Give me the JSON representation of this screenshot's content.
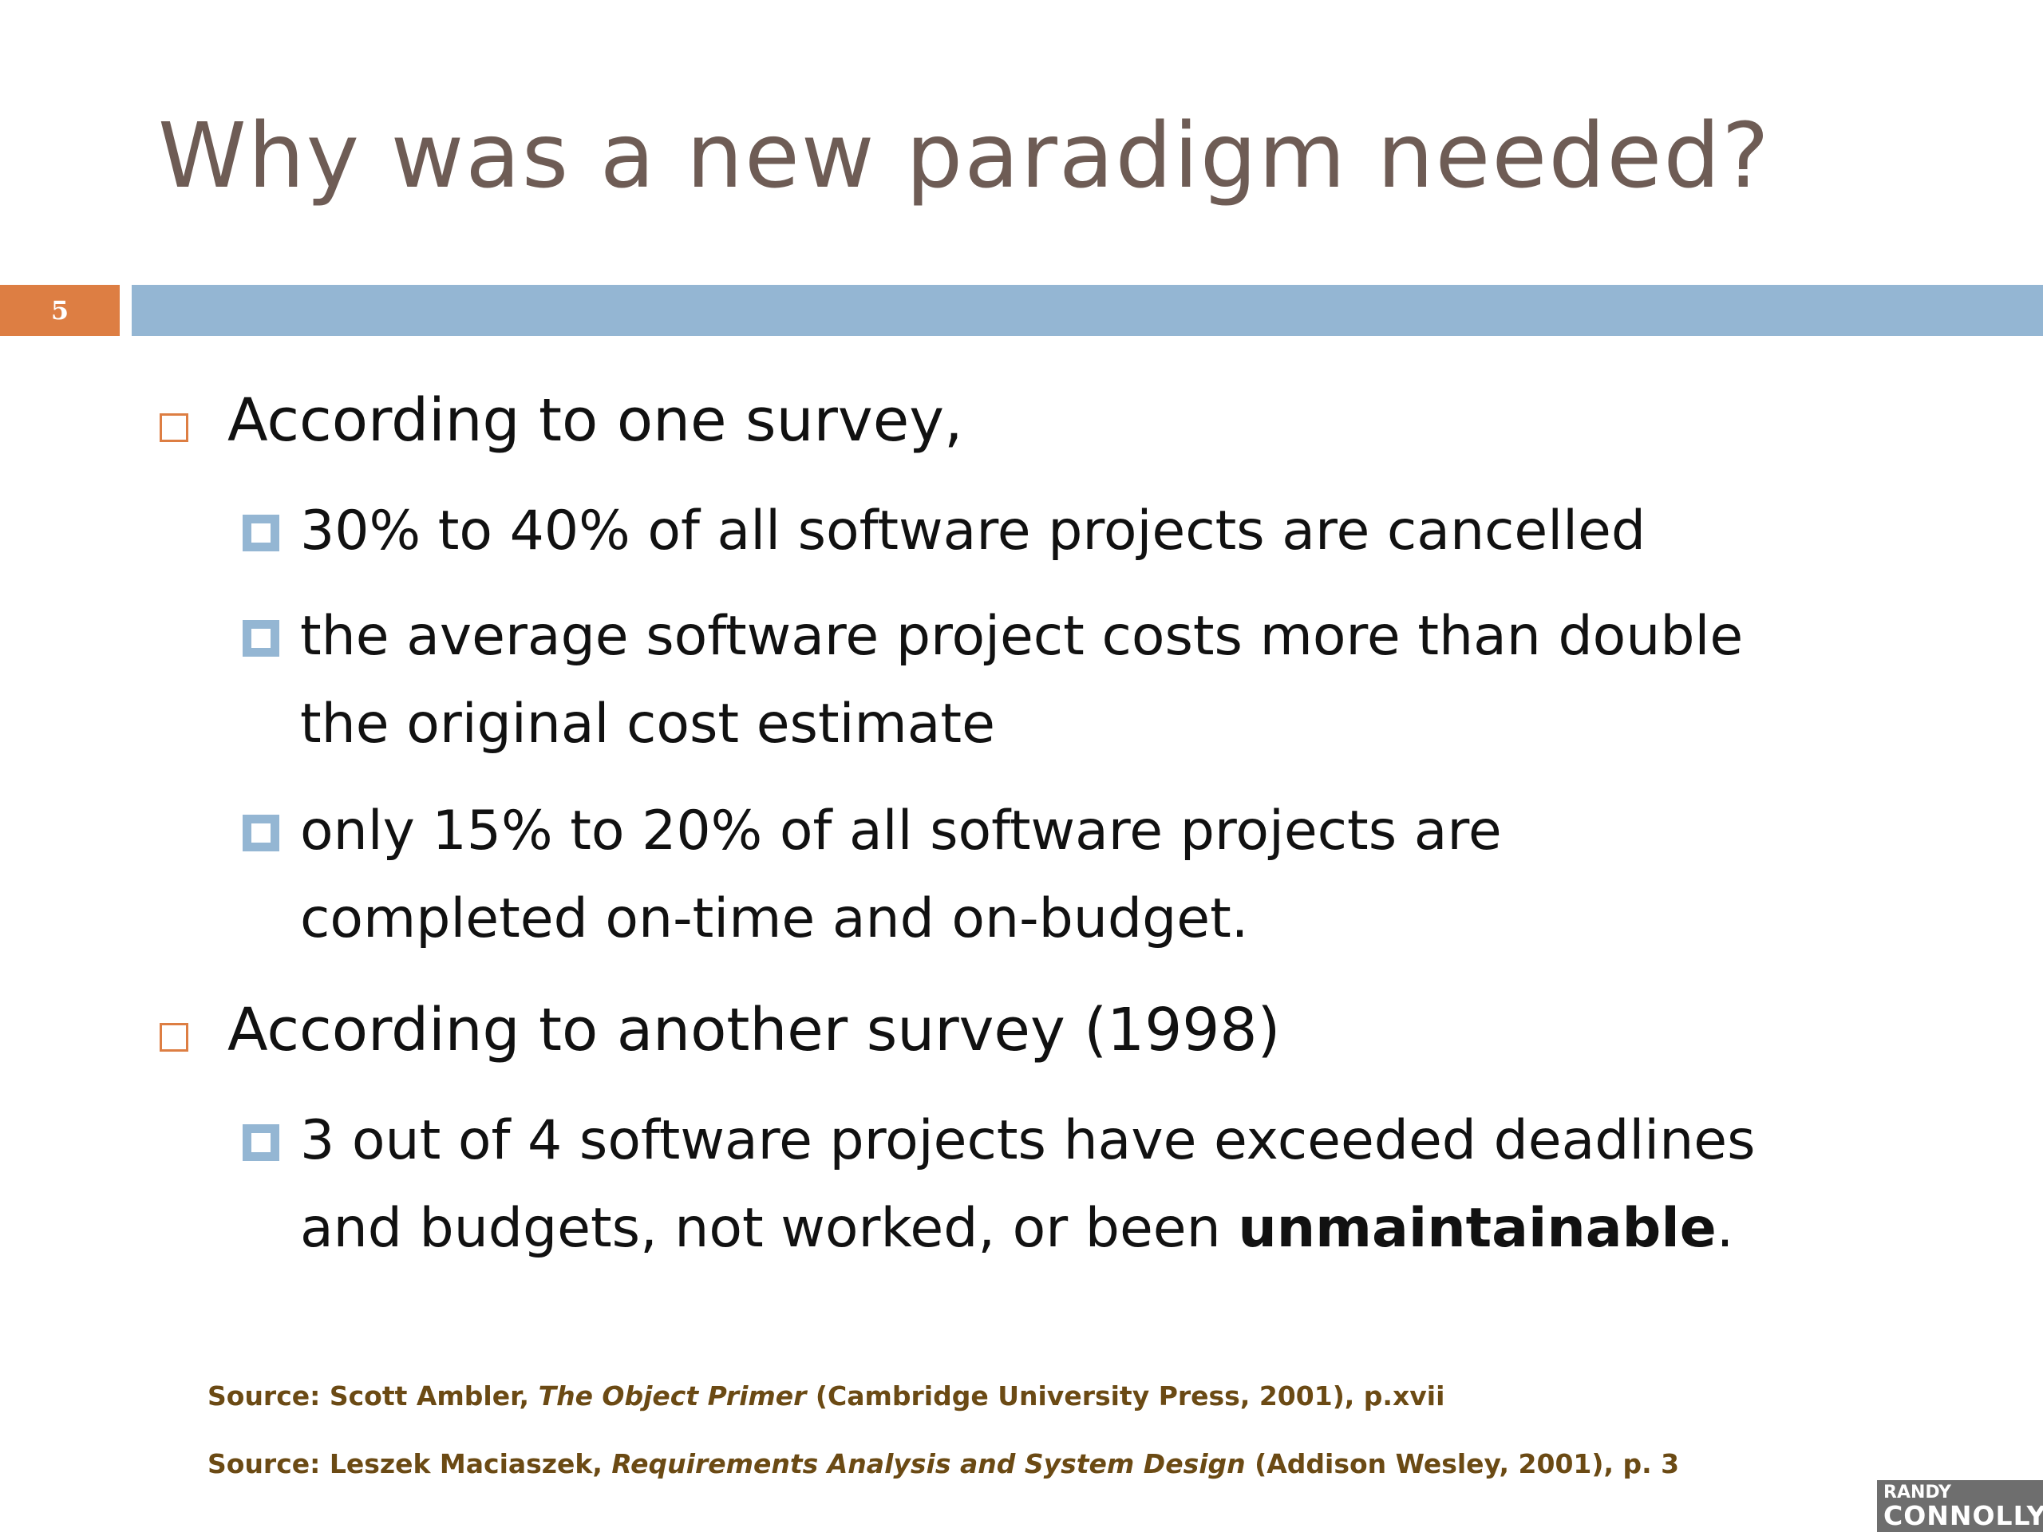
{
  "slide": {
    "title": "Why was a new paradigm needed?",
    "number": "5",
    "bullets": [
      {
        "text": "According to one survey,",
        "sub": [
          {
            "lines": [
              "30% to 40% of all software projects are cancelled"
            ]
          },
          {
            "lines": [
              "the average software project costs more than double",
              "the original cost estimate"
            ]
          },
          {
            "lines": [
              "only 15% to 20% of all software projects are",
              "completed on-time and on-budget."
            ]
          }
        ]
      },
      {
        "text": "According to another survey (1998)",
        "sub": [
          {
            "lines": [
              "3 out of 4 software projects have exceeded deadlines",
              "and budgets, not worked, or been "
            ],
            "bold": "unmaintainable",
            "tail": "."
          }
        ]
      }
    ],
    "sources": [
      {
        "prefix": "Source: Scott Ambler, ",
        "italic": "The Object Primer",
        "suffix": "  (Cambridge University Press, 2001), p.xvii"
      },
      {
        "prefix": "Source: Leszek Maciaszek, ",
        "italic": "Requirements Analysis and System Design",
        "suffix": "  (Addison Wesley, 2001), p. 3"
      }
    ],
    "logo": {
      "line1": "RANDY",
      "line2": "CONNOLLY"
    }
  },
  "colors": {
    "title": "#6e5c55",
    "accent_orange": "#dd7e43",
    "accent_blue": "#94b6d3",
    "source_text": "#6b4a14"
  }
}
